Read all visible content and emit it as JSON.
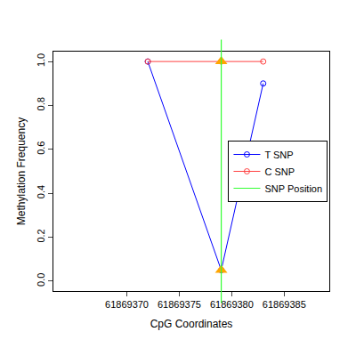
{
  "chart_data": {
    "type": "line",
    "x_label": "CpG Coordinates",
    "y_label": "Methylation Frequency",
    "xlim": [
      61869363,
      61869389.3
    ],
    "ylim": [
      -0.045,
      1.045
    ],
    "xticks": [
      61869370,
      61869375,
      61869380,
      61869385
    ],
    "yticks": [
      {
        "value": 0,
        "label": "0.0"
      },
      0.2,
      0.4,
      0.6,
      0.8,
      {
        "value": 1,
        "label": "1.0"
      }
    ],
    "grid": false,
    "legend": "right",
    "series": [
      {
        "name": "T SNP",
        "color": "#0000ff",
        "marker": "circle-open",
        "x": [
          61869372,
          61869379,
          61869383
        ],
        "values": [
          1.0,
          0.05,
          0.9
        ]
      },
      {
        "name": "C SNP",
        "color": "#ff4040",
        "marker": "circle-open",
        "x": [
          61869372,
          61869379,
          61869383
        ],
        "values": [
          1.0,
          1.0,
          1.0
        ]
      },
      {
        "name": "SNP Position",
        "color": "#33ff33",
        "type": "vline",
        "marker": "triangle-up",
        "x": 61869379
      }
    ]
  }
}
